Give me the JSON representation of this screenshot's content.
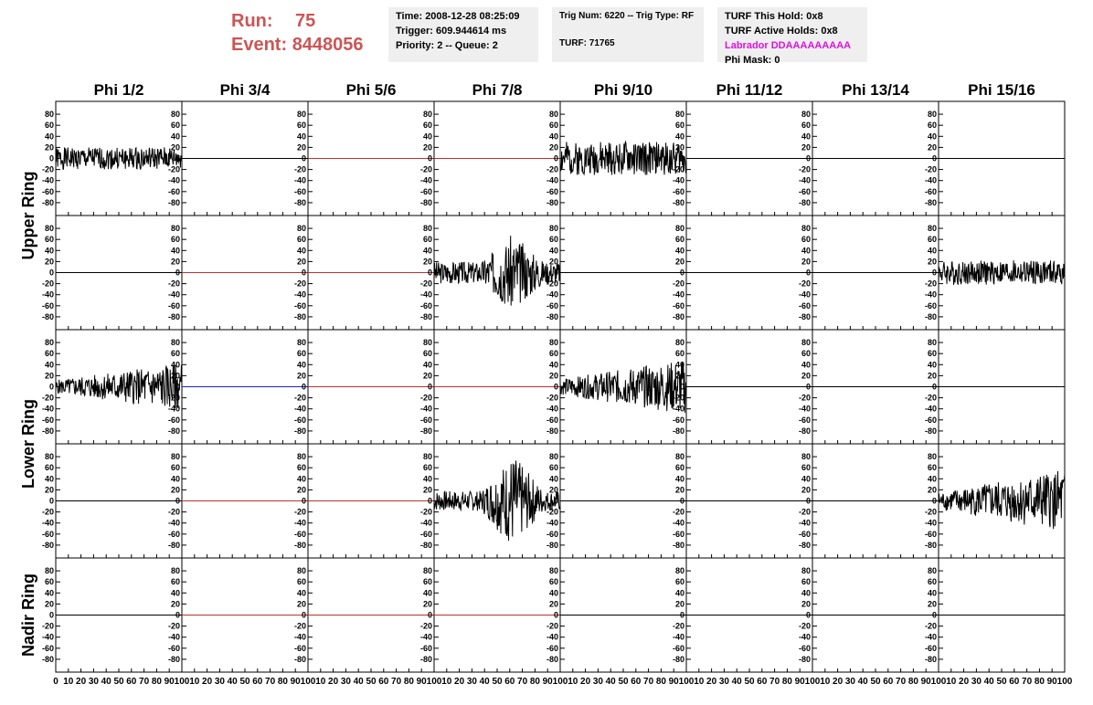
{
  "header": {
    "run_label": "Run:",
    "run_value": "75",
    "event_label": "Event:",
    "event_value": "8448056",
    "time": "Time: 2008-12-28 08:25:09",
    "trigger": "Trigger: 609.944614 ms",
    "priority": "Priority: 2 -- Queue: 2",
    "trig_num": "Trig Num: 6220 -- Trig Type: RF",
    "turf": "TURF: 71765",
    "turf_hold": "TURF This Hold: 0x8",
    "turf_active": "TURF Active Holds: 0x8",
    "labrador": "Labrador DDAAAAAAAAA",
    "phi_mask": "Phi Mask: 0",
    "labrador_color": "#e010e0",
    "run_color": "#cc5555"
  },
  "chart_data": {
    "type": "line",
    "columns": [
      "Phi 1/2",
      "Phi 3/4",
      "Phi 5/6",
      "Phi 7/8",
      "Phi 9/10",
      "Phi 11/12",
      "Phi 13/14",
      "Phi 15/16"
    ],
    "ring_labels": [
      {
        "text": "Upper Ring",
        "rows": [
          0,
          1
        ]
      },
      {
        "text": "Lower Ring",
        "rows": [
          2,
          3
        ]
      },
      {
        "text": "Nadir Ring",
        "rows": [
          4,
          4
        ]
      }
    ],
    "yticks": [
      80,
      60,
      40,
      20,
      0,
      -20,
      -40,
      -60,
      -80
    ],
    "ylim": [
      -95,
      95
    ],
    "xlim": [
      0,
      100
    ],
    "xtick_label_row": [
      "0",
      "10",
      "20",
      "30",
      "40",
      "50",
      "60",
      "70",
      "80",
      "90",
      "100"
    ],
    "line_color_black": "#000000",
    "flat_colors": {
      "red": "#c03030",
      "blue": "#2020c0",
      "black": "#000000"
    },
    "panels": [
      [
        {
          "kind": "noise",
          "amp": 20,
          "seed": 1
        },
        {
          "kind": "flat",
          "color": "black"
        },
        {
          "kind": "flat",
          "color": "red"
        },
        {
          "kind": "flat",
          "color": "red"
        },
        {
          "kind": "noise",
          "amp": 30,
          "seed": 2
        },
        {
          "kind": "flat",
          "color": "black"
        },
        {
          "kind": "flat",
          "color": "black"
        },
        {
          "kind": "flat",
          "color": "black"
        }
      ],
      [
        {
          "kind": "flat",
          "color": "black"
        },
        {
          "kind": "flat",
          "color": "red"
        },
        {
          "kind": "flat",
          "color": "red"
        },
        {
          "kind": "burst",
          "amp": 20,
          "peak": 70,
          "seed": 3
        },
        {
          "kind": "flat",
          "color": "black"
        },
        {
          "kind": "flat",
          "color": "black"
        },
        {
          "kind": "flat",
          "color": "black"
        },
        {
          "kind": "noise",
          "amp": 22,
          "seed": 4
        }
      ],
      [
        {
          "kind": "rising",
          "amp": 35,
          "seed": 5
        },
        {
          "kind": "flat",
          "color": "blue"
        },
        {
          "kind": "flat",
          "color": "red"
        },
        {
          "kind": "flat",
          "color": "red"
        },
        {
          "kind": "rising",
          "amp": 40,
          "seed": 6
        },
        {
          "kind": "flat",
          "color": "black"
        },
        {
          "kind": "flat",
          "color": "black"
        },
        {
          "kind": "flat",
          "color": "black"
        }
      ],
      [
        {
          "kind": "flat",
          "color": "black"
        },
        {
          "kind": "flat",
          "color": "red"
        },
        {
          "kind": "flat",
          "color": "red"
        },
        {
          "kind": "burst",
          "amp": 18,
          "peak": 85,
          "seed": 7
        },
        {
          "kind": "flat",
          "color": "black"
        },
        {
          "kind": "flat",
          "color": "black"
        },
        {
          "kind": "flat",
          "color": "black"
        },
        {
          "kind": "rising",
          "amp": 45,
          "seed": 8
        }
      ],
      [
        {
          "kind": "flat",
          "color": "black"
        },
        {
          "kind": "flat",
          "color": "red"
        },
        {
          "kind": "flat",
          "color": "red"
        },
        {
          "kind": "flat",
          "color": "red"
        },
        {
          "kind": "flat",
          "color": "black"
        },
        {
          "kind": "flat",
          "color": "black"
        },
        {
          "kind": "flat",
          "color": "black"
        },
        {
          "kind": "flat",
          "color": "black"
        }
      ]
    ]
  }
}
